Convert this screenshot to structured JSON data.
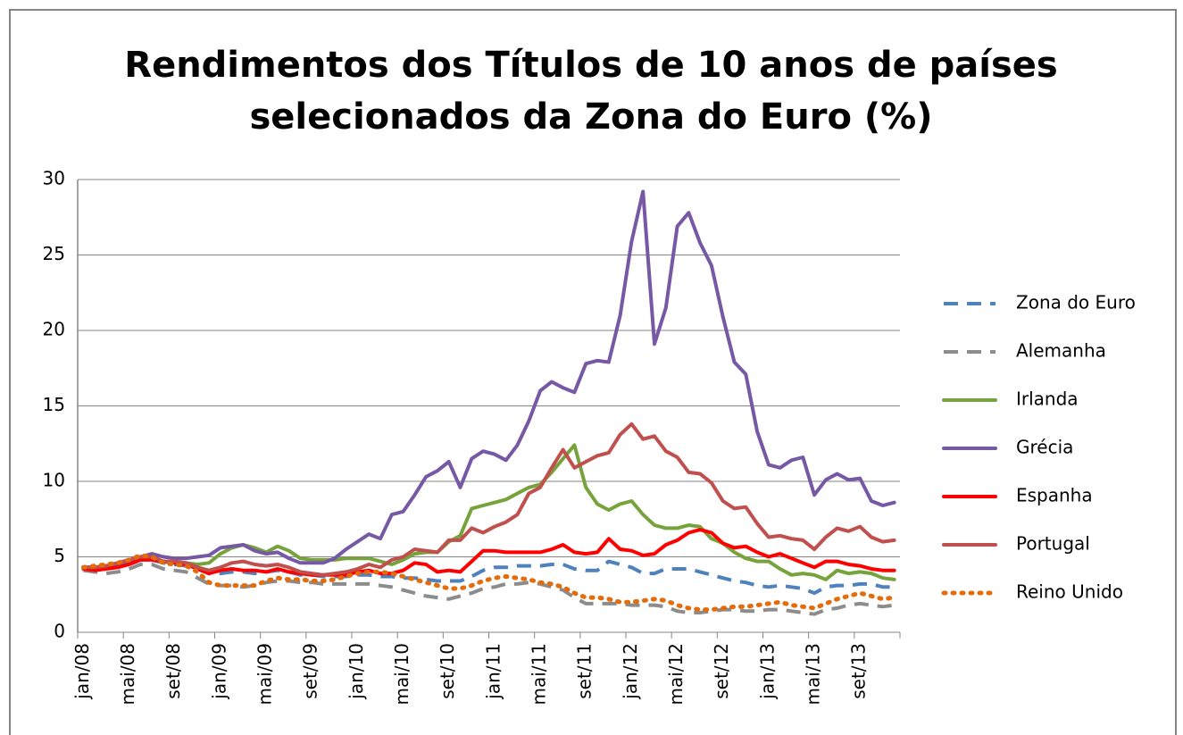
{
  "chart_data": {
    "type": "line",
    "title": [
      "Rendimentos dos Títulos de 10 anos de países",
      "selecionados da Zona do Euro (%)"
    ],
    "categories": [
      "jan/08",
      null,
      null,
      null,
      "mai/08",
      null,
      null,
      null,
      "set/08",
      null,
      null,
      null,
      "jan/09",
      null,
      null,
      null,
      "mai/09",
      null,
      null,
      null,
      "set/09",
      null,
      null,
      null,
      "jan/10",
      null,
      null,
      null,
      "mai/10",
      null,
      null,
      null,
      "set/10",
      null,
      null,
      null,
      "jan/11",
      null,
      null,
      null,
      "mai/11",
      null,
      null,
      null,
      "set/11",
      null,
      null,
      null,
      "jan/12",
      null,
      null,
      null,
      "mai/12",
      null,
      null,
      null,
      "set/12",
      null,
      null,
      null,
      "jan/13",
      null,
      null,
      null,
      "mai/13",
      null,
      null,
      null,
      "set/13",
      null,
      null,
      null
    ],
    "ylim": [
      0,
      30
    ],
    "yticks": [
      0,
      5,
      10,
      15,
      20,
      25,
      30
    ],
    "grid": true,
    "legend": "right",
    "series": [
      {
        "name": "Zona do Euro",
        "color": "#4f81bd",
        "dash": "dashed",
        "values": [
          4.3,
          4.2,
          4.3,
          4.3,
          4.5,
          4.8,
          4.8,
          4.6,
          4.5,
          4.4,
          4.2,
          3.9,
          3.9,
          4.0,
          4.0,
          3.9,
          4.0,
          4.1,
          4.0,
          3.8,
          3.8,
          3.7,
          3.7,
          3.7,
          3.8,
          3.8,
          3.7,
          3.7,
          3.6,
          3.6,
          3.5,
          3.4,
          3.4,
          3.4,
          3.7,
          4.1,
          4.3,
          4.3,
          4.4,
          4.4,
          4.4,
          4.5,
          4.5,
          4.2,
          4.1,
          4.1,
          4.7,
          4.5,
          4.3,
          3.9,
          3.9,
          4.2,
          4.2,
          4.2,
          4.0,
          3.8,
          3.6,
          3.4,
          3.3,
          3.1,
          3.0,
          3.1,
          3.0,
          2.9,
          2.6,
          3.0,
          3.1,
          3.1,
          3.2,
          3.2,
          3.0,
          3.0
        ]
      },
      {
        "name": "Alemanha",
        "color": "#8c8c8c",
        "dash": "dashed",
        "values": [
          4.1,
          4.0,
          3.9,
          4.0,
          4.2,
          4.5,
          4.5,
          4.2,
          4.1,
          4.0,
          3.6,
          3.2,
          3.1,
          3.1,
          3.0,
          3.1,
          3.3,
          3.4,
          3.4,
          3.3,
          3.3,
          3.2,
          3.2,
          3.2,
          3.2,
          3.2,
          3.1,
          3.0,
          2.8,
          2.6,
          2.4,
          2.3,
          2.2,
          2.4,
          2.6,
          2.9,
          3.0,
          3.2,
          3.2,
          3.3,
          3.2,
          3.0,
          2.8,
          2.3,
          1.9,
          1.9,
          1.9,
          1.9,
          1.8,
          1.8,
          1.8,
          1.7,
          1.4,
          1.3,
          1.3,
          1.4,
          1.5,
          1.5,
          1.4,
          1.4,
          1.5,
          1.5,
          1.4,
          1.3,
          1.2,
          1.5,
          1.6,
          1.8,
          1.9,
          1.8,
          1.7,
          1.8
        ]
      },
      {
        "name": "Irlanda",
        "color": "#77a33d",
        "dash": "solid",
        "values": [
          4.3,
          4.3,
          4.4,
          4.5,
          4.7,
          4.9,
          5.0,
          4.7,
          4.6,
          4.6,
          4.5,
          4.6,
          5.2,
          5.6,
          5.8,
          5.6,
          5.3,
          5.7,
          5.4,
          4.9,
          4.8,
          4.8,
          4.8,
          4.9,
          4.9,
          4.9,
          4.7,
          4.5,
          4.8,
          5.2,
          5.3,
          5.3,
          6.0,
          6.4,
          8.2,
          8.4,
          8.6,
          8.8,
          9.2,
          9.6,
          9.8,
          10.6,
          11.5,
          12.4,
          9.6,
          8.5,
          8.1,
          8.5,
          8.7,
          7.8,
          7.1,
          6.9,
          6.9,
          7.1,
          7.0,
          6.2,
          5.9,
          5.3,
          4.9,
          4.7,
          4.7,
          4.2,
          3.8,
          3.9,
          3.8,
          3.5,
          4.1,
          3.9,
          4.0,
          3.9,
          3.6,
          3.5
        ]
      },
      {
        "name": "Grécia",
        "color": "#7658a4",
        "dash": "solid",
        "values": [
          4.3,
          4.3,
          4.4,
          4.5,
          4.6,
          5.0,
          5.2,
          5.0,
          4.9,
          4.9,
          5.0,
          5.1,
          5.6,
          5.7,
          5.8,
          5.4,
          5.2,
          5.3,
          4.9,
          4.6,
          4.6,
          4.6,
          4.9,
          5.5,
          6.0,
          6.5,
          6.2,
          7.8,
          8.0,
          9.1,
          10.3,
          10.7,
          11.3,
          9.6,
          11.5,
          12.0,
          11.8,
          11.4,
          12.4,
          14.0,
          16.0,
          16.6,
          16.2,
          15.9,
          17.8,
          18.0,
          17.9,
          21.0,
          25.9,
          29.2,
          19.1,
          21.5,
          26.9,
          27.8,
          25.8,
          24.3,
          20.9,
          17.9,
          17.1,
          13.3,
          11.1,
          10.9,
          11.4,
          11.6,
          9.1,
          10.1,
          10.5,
          10.1,
          10.2,
          8.7,
          8.4,
          8.6
        ]
      },
      {
        "name": "Espanha",
        "color": "#ff0000",
        "dash": "solid",
        "values": [
          4.2,
          4.1,
          4.2,
          4.3,
          4.5,
          4.8,
          4.8,
          4.7,
          4.6,
          4.5,
          4.2,
          3.9,
          4.1,
          4.2,
          4.1,
          4.1,
          4.0,
          4.2,
          4.0,
          3.9,
          3.8,
          3.8,
          3.8,
          3.8,
          4.0,
          4.1,
          3.9,
          3.9,
          4.1,
          4.6,
          4.5,
          4.0,
          4.1,
          4.0,
          4.7,
          5.4,
          5.4,
          5.3,
          5.3,
          5.3,
          5.3,
          5.5,
          5.8,
          5.3,
          5.2,
          5.3,
          6.2,
          5.5,
          5.4,
          5.1,
          5.2,
          5.8,
          6.1,
          6.6,
          6.8,
          6.6,
          5.9,
          5.6,
          5.7,
          5.3,
          5.0,
          5.2,
          4.9,
          4.6,
          4.3,
          4.7,
          4.7,
          4.5,
          4.4,
          4.2,
          4.1,
          4.1
        ]
      },
      {
        "name": "Portugal",
        "color": "#c0504d",
        "dash": "solid",
        "values": [
          4.3,
          4.3,
          4.4,
          4.6,
          4.8,
          5.0,
          5.0,
          4.7,
          4.7,
          4.6,
          4.3,
          4.1,
          4.3,
          4.6,
          4.7,
          4.5,
          4.4,
          4.5,
          4.3,
          4.0,
          3.9,
          3.8,
          3.9,
          4.0,
          4.2,
          4.5,
          4.3,
          4.8,
          5.0,
          5.5,
          5.4,
          5.3,
          6.1,
          6.1,
          6.9,
          6.6,
          7.0,
          7.3,
          7.8,
          9.2,
          9.6,
          10.9,
          12.1,
          10.9,
          11.3,
          11.7,
          11.9,
          13.1,
          13.8,
          12.8,
          13.0,
          12.0,
          11.6,
          10.6,
          10.5,
          9.9,
          8.7,
          8.2,
          8.3,
          7.2,
          6.3,
          6.4,
          6.2,
          6.1,
          5.5,
          6.3,
          6.9,
          6.7,
          7.0,
          6.3,
          6.0,
          6.1
        ]
      },
      {
        "name": "Reino Unido",
        "color": "#e46c0a",
        "dash": "dotted",
        "values": [
          4.3,
          4.4,
          4.5,
          4.6,
          4.8,
          5.1,
          5.0,
          4.6,
          4.5,
          4.4,
          4.0,
          3.3,
          3.1,
          3.1,
          3.1,
          3.1,
          3.4,
          3.6,
          3.5,
          3.5,
          3.4,
          3.4,
          3.5,
          3.7,
          3.9,
          4.0,
          4.0,
          3.9,
          3.7,
          3.5,
          3.3,
          3.1,
          2.9,
          2.9,
          3.1,
          3.4,
          3.6,
          3.7,
          3.6,
          3.5,
          3.3,
          3.2,
          3.0,
          2.6,
          2.3,
          2.3,
          2.2,
          2.0,
          2.0,
          2.1,
          2.2,
          2.1,
          1.8,
          1.6,
          1.5,
          1.5,
          1.6,
          1.7,
          1.7,
          1.8,
          1.9,
          2.0,
          1.8,
          1.7,
          1.6,
          1.9,
          2.2,
          2.4,
          2.6,
          2.4,
          2.2,
          2.3
        ]
      }
    ]
  }
}
